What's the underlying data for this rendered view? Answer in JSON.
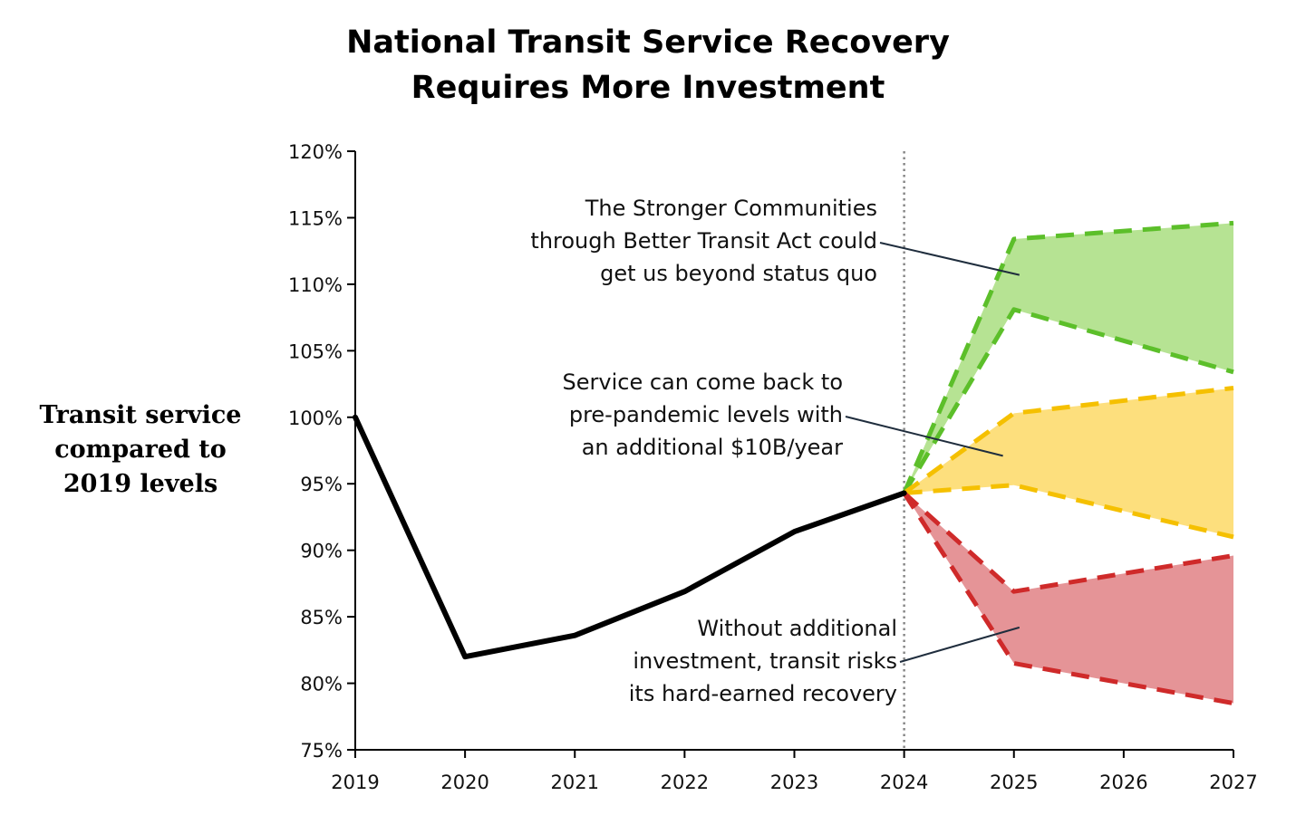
{
  "chart_data": {
    "type": "line",
    "title": [
      "National Transit Service Recovery",
      "Requires More Investment"
    ],
    "xlabel": "",
    "ylabel": [
      "Transit service",
      "compared to",
      "2019 levels"
    ],
    "x": [
      "2019",
      "2020",
      "2021",
      "2022",
      "2023",
      "2024",
      "2025",
      "2026",
      "2027"
    ],
    "xlim": [
      2019,
      2027
    ],
    "ylim": [
      75,
      120
    ],
    "yticks": [
      75,
      80,
      85,
      90,
      95,
      100,
      105,
      110,
      115,
      120
    ],
    "ytick_labels": [
      "75%",
      "80%",
      "85%",
      "90%",
      "95%",
      "100%",
      "105%",
      "110%",
      "115%",
      "120%"
    ],
    "grid": false,
    "reference_line": {
      "x": 2024,
      "style": "dotted",
      "color": "#888888"
    },
    "historical": {
      "color": "#000000",
      "x": [
        2019,
        2020,
        2021,
        2022,
        2023,
        2024
      ],
      "values": [
        100,
        82,
        83.6,
        86.9,
        91.4,
        94.3
      ]
    },
    "scenarios": [
      {
        "id": "green",
        "line_color": "#5cbf2a",
        "fill_color": "#b6e393",
        "upper": {
          "x": [
            2024,
            2025,
            2027
          ],
          "values": [
            94.3,
            113.4,
            114.6
          ]
        },
        "lower": {
          "x": [
            2024,
            2025,
            2027
          ],
          "values": [
            94.3,
            108.1,
            103.4
          ]
        },
        "annotation": [
          "The Stronger Communities",
          "through Better Transit Act could",
          "get us beyond status quo"
        ],
        "pointer": {
          "x": 2025.05,
          "y": 110.7
        }
      },
      {
        "id": "yellow",
        "line_color": "#f5c000",
        "fill_color": "#fddf7d",
        "upper": {
          "x": [
            2024,
            2025,
            2027
          ],
          "values": [
            94.3,
            100.3,
            102.2
          ]
        },
        "lower": {
          "x": [
            2024,
            2025,
            2027
          ],
          "values": [
            94.3,
            94.9,
            91.0
          ]
        },
        "annotation": [
          "Service can come back to",
          "pre-pandemic levels with",
          "an additional $10B/year"
        ],
        "pointer": {
          "x": 2024.9,
          "y": 97.1
        }
      },
      {
        "id": "red",
        "line_color": "#cf2a2a",
        "fill_color": "#e59497",
        "upper": {
          "x": [
            2024,
            2025,
            2027
          ],
          "values": [
            94.3,
            86.9,
            89.6
          ]
        },
        "lower": {
          "x": [
            2024,
            2025,
            2027
          ],
          "values": [
            94.3,
            81.5,
            78.5
          ]
        },
        "annotation": [
          "Without additional",
          "investment, transit risks",
          "its hard-earned recovery"
        ],
        "pointer": {
          "x": 2025.05,
          "y": 84.2
        }
      }
    ]
  }
}
